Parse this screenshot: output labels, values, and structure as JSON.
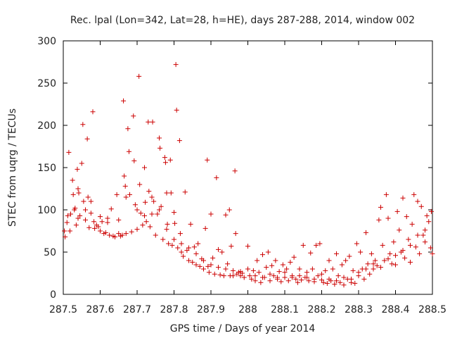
{
  "chart_data": {
    "type": "scatter",
    "title": "Rec. lpal (Lon=342, Lat=28, h=HE), days 287-288, 2014, window 002",
    "xlabel": "GPS time / Days of year 2014",
    "ylabel": "STEC from uqrg / TECUs",
    "xlim": [
      287.5,
      288.5
    ],
    "ylim": [
      0,
      300
    ],
    "x_ticks": [
      287.5,
      287.6,
      287.7,
      287.8,
      287.9,
      288.0,
      288.1,
      288.2,
      288.3,
      288.4,
      288.5
    ],
    "x_tick_labels": [
      "287.5",
      "287.6",
      "287.7",
      "287.8",
      "287.9",
      "288",
      "288.1",
      "288.2",
      "288.3",
      "288.4",
      "288.5"
    ],
    "y_ticks": [
      0,
      50,
      100,
      150,
      200,
      250,
      300
    ],
    "y_tick_labels": [
      "0",
      "50",
      "100",
      "150",
      "200",
      "250",
      "300"
    ],
    "grid": false,
    "marker": "+",
    "series": [
      {
        "color": "#cc0000",
        "points": [
          [
            287.503,
            75
          ],
          [
            287.505,
            68
          ],
          [
            287.51,
            85
          ],
          [
            287.512,
            93
          ],
          [
            287.515,
            168
          ],
          [
            287.518,
            75
          ],
          [
            287.52,
            95
          ],
          [
            287.525,
            135
          ],
          [
            287.527,
            118
          ],
          [
            287.53,
            100
          ],
          [
            287.532,
            102
          ],
          [
            287.535,
            82
          ],
          [
            287.538,
            148
          ],
          [
            287.54,
            125
          ],
          [
            287.542,
            120
          ],
          [
            287.545,
            93
          ],
          [
            287.55,
            155
          ],
          [
            287.553,
            201
          ],
          [
            287.555,
            110
          ],
          [
            287.56,
            88
          ],
          [
            287.565,
            184
          ],
          [
            287.567,
            115
          ],
          [
            287.57,
            79
          ],
          [
            287.575,
            96
          ],
          [
            287.58,
            216
          ],
          [
            287.583,
            86
          ],
          [
            287.585,
            78
          ],
          [
            287.59,
            82
          ],
          [
            287.595,
            80
          ],
          [
            287.6,
            75
          ],
          [
            287.605,
            86
          ],
          [
            287.61,
            72
          ],
          [
            287.615,
            73
          ],
          [
            287.62,
            90
          ],
          [
            287.625,
            70
          ],
          [
            287.63,
            101
          ],
          [
            287.635,
            69
          ],
          [
            287.64,
            68
          ],
          [
            287.645,
            118
          ],
          [
            287.65,
            88
          ],
          [
            287.655,
            69
          ],
          [
            287.66,
            70
          ],
          [
            287.663,
            229
          ],
          [
            287.665,
            140
          ],
          [
            287.668,
            128
          ],
          [
            287.67,
            72
          ],
          [
            287.675,
            196
          ],
          [
            287.678,
            169
          ],
          [
            287.68,
            118
          ],
          [
            287.685,
            74
          ],
          [
            287.69,
            211
          ],
          [
            287.692,
            158
          ],
          [
            287.695,
            106
          ],
          [
            287.7,
            77
          ],
          [
            287.705,
            258
          ],
          [
            287.707,
            130
          ],
          [
            287.71,
            96
          ],
          [
            287.715,
            82
          ],
          [
            287.72,
            150
          ],
          [
            287.722,
            109
          ],
          [
            287.725,
            86
          ],
          [
            287.73,
            204
          ],
          [
            287.732,
            122
          ],
          [
            287.735,
            80
          ],
          [
            287.74,
            95
          ],
          [
            287.742,
            204
          ],
          [
            287.745,
            110
          ],
          [
            287.75,
            70
          ],
          [
            287.755,
            95
          ],
          [
            287.76,
            185
          ],
          [
            287.762,
            173
          ],
          [
            287.765,
            104
          ],
          [
            287.77,
            65
          ],
          [
            287.775,
            162
          ],
          [
            287.777,
            156
          ],
          [
            287.78,
            120
          ],
          [
            287.782,
            83
          ],
          [
            287.785,
            60
          ],
          [
            287.79,
            159
          ],
          [
            287.792,
            120
          ],
          [
            287.795,
            58
          ],
          [
            287.8,
            97
          ],
          [
            287.802,
            84
          ],
          [
            287.805,
            272
          ],
          [
            287.807,
            218
          ],
          [
            287.81,
            55
          ],
          [
            287.815,
            182
          ],
          [
            287.817,
            72
          ],
          [
            287.82,
            50
          ],
          [
            287.825,
            45
          ],
          [
            287.83,
            121
          ],
          [
            287.835,
            52
          ],
          [
            287.84,
            40
          ],
          [
            287.845,
            83
          ],
          [
            287.85,
            38
          ],
          [
            287.855,
            56
          ],
          [
            287.86,
            35
          ],
          [
            287.865,
            60
          ],
          [
            287.87,
            33
          ],
          [
            287.875,
            42
          ],
          [
            287.88,
            30
          ],
          [
            287.885,
            78
          ],
          [
            287.89,
            159
          ],
          [
            287.892,
            33
          ],
          [
            287.895,
            26
          ],
          [
            287.9,
            95
          ],
          [
            287.905,
            43
          ],
          [
            287.91,
            24
          ],
          [
            287.915,
            138
          ],
          [
            287.92,
            53
          ],
          [
            287.925,
            23
          ],
          [
            287.93,
            50
          ],
          [
            287.935,
            22
          ],
          [
            287.94,
            94
          ],
          [
            287.945,
            36
          ],
          [
            287.95,
            100
          ],
          [
            287.952,
            22
          ],
          [
            287.955,
            57
          ],
          [
            287.96,
            22
          ],
          [
            287.965,
            146
          ],
          [
            287.967,
            72
          ],
          [
            287.97,
            24
          ],
          [
            287.975,
            26
          ],
          [
            287.98,
            22
          ],
          [
            287.985,
            25
          ],
          [
            287.99,
            20
          ],
          [
            287.54,
            90
          ],
          [
            287.56,
            100
          ],
          [
            287.575,
            110
          ],
          [
            287.6,
            92
          ],
          [
            287.62,
            85
          ],
          [
            287.65,
            72
          ],
          [
            287.67,
            115
          ],
          [
            287.7,
            100
          ],
          [
            287.72,
            93
          ],
          [
            287.74,
            115
          ],
          [
            287.76,
            100
          ],
          [
            287.78,
            77
          ],
          [
            287.8,
            65
          ],
          [
            287.82,
            60
          ],
          [
            287.84,
            55
          ],
          [
            287.86,
            48
          ],
          [
            287.88,
            40
          ],
          [
            287.9,
            35
          ],
          [
            287.92,
            32
          ],
          [
            287.94,
            30
          ],
          [
            287.96,
            28
          ],
          [
            287.98,
            27
          ],
          [
            288.0,
            57
          ],
          [
            288.005,
            22
          ],
          [
            288.01,
            18
          ],
          [
            288.015,
            28
          ],
          [
            288.02,
            16
          ],
          [
            288.025,
            40
          ],
          [
            288.03,
            26
          ],
          [
            288.035,
            14
          ],
          [
            288.04,
            47
          ],
          [
            288.045,
            20
          ],
          [
            288.05,
            32
          ],
          [
            288.055,
            50
          ],
          [
            288.06,
            16
          ],
          [
            288.065,
            34
          ],
          [
            288.07,
            22
          ],
          [
            288.075,
            40
          ],
          [
            288.08,
            18
          ],
          [
            288.085,
            27
          ],
          [
            288.09,
            15
          ],
          [
            288.095,
            35
          ],
          [
            288.1,
            20
          ],
          [
            288.105,
            30
          ],
          [
            288.11,
            16
          ],
          [
            288.115,
            38
          ],
          [
            288.12,
            22
          ],
          [
            288.125,
            44
          ],
          [
            288.13,
            18
          ],
          [
            288.135,
            14
          ],
          [
            288.14,
            30
          ],
          [
            288.145,
            17
          ],
          [
            288.15,
            58
          ],
          [
            288.155,
            20
          ],
          [
            288.16,
            26
          ],
          [
            288.165,
            16
          ],
          [
            288.17,
            49
          ],
          [
            288.175,
            30
          ],
          [
            288.18,
            15
          ],
          [
            288.185,
            58
          ],
          [
            288.19,
            22
          ],
          [
            288.195,
            60
          ],
          [
            288.2,
            17
          ],
          [
            288.205,
            14
          ],
          [
            288.21,
            28
          ],
          [
            288.215,
            13
          ],
          [
            288.22,
            40
          ],
          [
            288.225,
            16
          ],
          [
            288.23,
            30
          ],
          [
            288.235,
            12
          ],
          [
            288.24,
            48
          ],
          [
            288.245,
            22
          ],
          [
            288.25,
            14
          ],
          [
            288.255,
            35
          ],
          [
            288.26,
            11
          ],
          [
            288.265,
            40
          ],
          [
            288.27,
            18
          ],
          [
            288.275,
            45
          ],
          [
            288.28,
            14
          ],
          [
            288.285,
            28
          ],
          [
            288.29,
            13
          ],
          [
            288.295,
            60
          ],
          [
            288.3,
            22
          ],
          [
            288.305,
            50
          ],
          [
            288.31,
            30
          ],
          [
            288.315,
            18
          ],
          [
            288.32,
            73
          ],
          [
            288.325,
            36
          ],
          [
            288.33,
            24
          ],
          [
            288.335,
            48
          ],
          [
            288.34,
            30
          ],
          [
            288.345,
            40
          ],
          [
            288.35,
            34
          ],
          [
            288.355,
            88
          ],
          [
            288.36,
            103
          ],
          [
            288.365,
            58
          ],
          [
            288.37,
            40
          ],
          [
            288.375,
            118
          ],
          [
            288.38,
            90
          ],
          [
            288.385,
            48
          ],
          [
            288.39,
            36
          ],
          [
            288.395,
            62
          ],
          [
            288.4,
            35
          ],
          [
            288.405,
            98
          ],
          [
            288.41,
            76
          ],
          [
            288.415,
            50
          ],
          [
            288.42,
            114
          ],
          [
            288.425,
            43
          ],
          [
            288.43,
            92
          ],
          [
            288.435,
            65
          ],
          [
            288.44,
            38
          ],
          [
            288.445,
            83
          ],
          [
            288.45,
            118
          ],
          [
            288.455,
            56
          ],
          [
            288.46,
            110
          ],
          [
            288.465,
            48
          ],
          [
            288.47,
            104
          ],
          [
            288.475,
            70
          ],
          [
            288.48,
            62
          ],
          [
            288.485,
            93
          ],
          [
            288.49,
            86
          ],
          [
            288.495,
            55
          ],
          [
            288.497,
            98
          ],
          [
            288.0,
            30
          ],
          [
            288.02,
            22
          ],
          [
            288.04,
            20
          ],
          [
            288.06,
            24
          ],
          [
            288.08,
            20
          ],
          [
            288.1,
            26
          ],
          [
            288.12,
            20
          ],
          [
            288.14,
            22
          ],
          [
            288.16,
            20
          ],
          [
            288.18,
            18
          ],
          [
            288.2,
            24
          ],
          [
            288.22,
            18
          ],
          [
            288.24,
            16
          ],
          [
            288.26,
            20
          ],
          [
            288.28,
            18
          ],
          [
            288.3,
            26
          ],
          [
            288.32,
            30
          ],
          [
            288.34,
            36
          ],
          [
            288.36,
            32
          ],
          [
            288.38,
            42
          ],
          [
            288.4,
            46
          ],
          [
            288.42,
            52
          ],
          [
            288.44,
            58
          ],
          [
            288.46,
            70
          ],
          [
            288.48,
            76
          ],
          [
            288.5,
            48
          ]
        ]
      }
    ]
  }
}
